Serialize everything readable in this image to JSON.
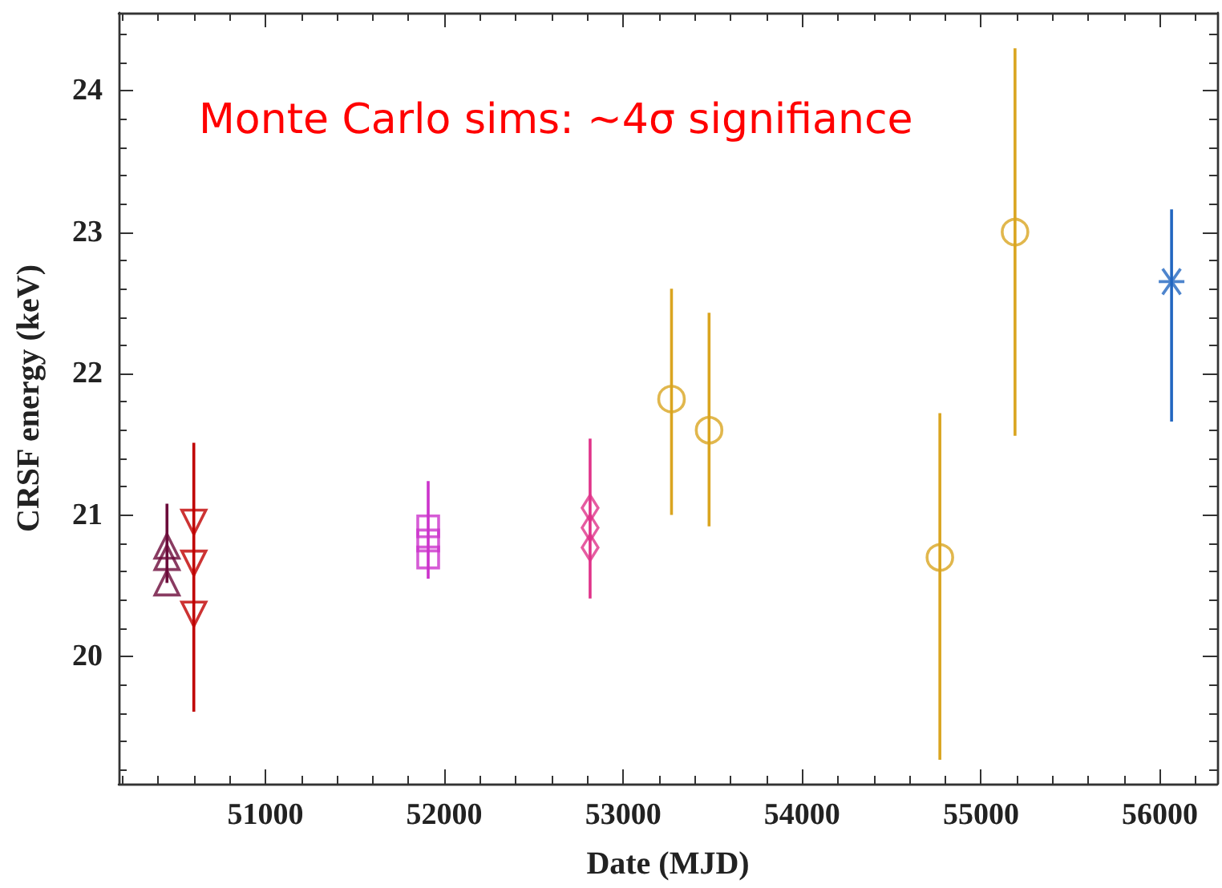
{
  "chart_data": {
    "type": "scatter",
    "xlabel": "Date (MJD)",
    "ylabel": "CRSF energy (keV)",
    "annotations": [
      "Monte Carlo sims: ~4σ signifiance"
    ],
    "xlim": [
      50180,
      56320
    ],
    "ylim": [
      19.1,
      24.55
    ],
    "xticks": [
      {
        "value": 50200,
        "label": null
      },
      {
        "value": 50400,
        "label": null
      },
      {
        "value": 50600,
        "label": null
      },
      {
        "value": 50800,
        "label": null
      },
      51000,
      {
        "value": 51200,
        "label": null
      },
      {
        "value": 51400,
        "label": null
      },
      {
        "value": 51600,
        "label": null
      },
      {
        "value": 51800,
        "label": null
      },
      52000,
      {
        "value": 52200,
        "label": null
      },
      {
        "value": 52400,
        "label": null
      },
      {
        "value": 52600,
        "label": null
      },
      {
        "value": 52800,
        "label": null
      },
      53000,
      {
        "value": 53200,
        "label": null
      },
      {
        "value": 53400,
        "label": null
      },
      {
        "value": 53600,
        "label": null
      },
      {
        "value": 53800,
        "label": null
      },
      54000,
      {
        "value": 54200,
        "label": null
      },
      {
        "value": 54400,
        "label": null
      },
      {
        "value": 54600,
        "label": null
      },
      {
        "value": 54800,
        "label": null
      },
      55000,
      {
        "value": 55200,
        "label": null
      },
      {
        "value": 55400,
        "label": null
      },
      {
        "value": 55600,
        "label": null
      },
      {
        "value": 55800,
        "label": null
      },
      56000,
      {
        "value": 56200,
        "label": null
      }
    ],
    "yticks": [
      {
        "value": 19.2,
        "label": null
      },
      {
        "value": 19.4,
        "label": null
      },
      {
        "value": 19.6,
        "label": null
      },
      {
        "value": 19.8,
        "label": null
      },
      20,
      {
        "value": 20.2,
        "label": null
      },
      {
        "value": 20.4,
        "label": null
      },
      {
        "value": 20.6,
        "label": null
      },
      {
        "value": 20.8,
        "label": null
      },
      21,
      {
        "value": 21.2,
        "label": null
      },
      {
        "value": 21.4,
        "label": null
      },
      {
        "value": 21.6,
        "label": null
      },
      {
        "value": 21.8,
        "label": null
      },
      22,
      {
        "value": 22.2,
        "label": null
      },
      {
        "value": 22.4,
        "label": null
      },
      {
        "value": 22.6,
        "label": null
      },
      {
        "value": 22.8,
        "label": null
      },
      23,
      {
        "value": 23.2,
        "label": null
      },
      {
        "value": 23.4,
        "label": null
      },
      {
        "value": 23.6,
        "label": null
      },
      {
        "value": 23.8,
        "label": null
      },
      24,
      {
        "value": 24.2,
        "label": null
      },
      {
        "value": 24.4,
        "label": null
      }
    ],
    "grid": false,
    "series": [
      {
        "color": "#6b0a3a",
        "marker": "triangle",
        "x": [
          50450,
          50450,
          50450
        ],
        "values": [
          20.78,
          20.7,
          20.52
        ],
        "errors": [
          [
            20.52,
            21.08
          ],
          null,
          null
        ]
      },
      {
        "color": "#c00000",
        "marker": "triangle-down",
        "x": [
          50600,
          50600,
          50600
        ],
        "values": [
          20.95,
          20.66,
          20.3
        ],
        "errors": [
          null,
          [
            19.61,
            21.51
          ],
          null
        ]
      },
      {
        "color": "#cc33cc",
        "marker": "square",
        "x": [
          51910,
          51910,
          51910
        ],
        "values": [
          20.92,
          20.82,
          20.7
        ],
        "errors": [
          null,
          [
            20.55,
            21.24
          ],
          null
        ]
      },
      {
        "color": "#e0338a",
        "marker": "diamond",
        "x": [
          52815,
          52815,
          52815
        ],
        "values": [
          21.05,
          20.91,
          20.77
        ],
        "errors": [
          null,
          [
            20.41,
            21.54
          ],
          null
        ]
      },
      {
        "color": "#daa520",
        "marker": "circle",
        "x": [
          53270,
          53480,
          54770,
          55190
        ],
        "values": [
          21.82,
          21.6,
          20.7,
          23.0
        ],
        "errors": [
          [
            21.0,
            22.6
          ],
          [
            20.92,
            22.43
          ],
          [
            19.27,
            21.72
          ],
          [
            21.56,
            24.3
          ]
        ]
      },
      {
        "color": "#2266c0",
        "marker": "cross",
        "x": [
          56065
        ],
        "values": [
          22.65
        ],
        "errors": [
          [
            21.66,
            23.16
          ]
        ]
      }
    ]
  }
}
